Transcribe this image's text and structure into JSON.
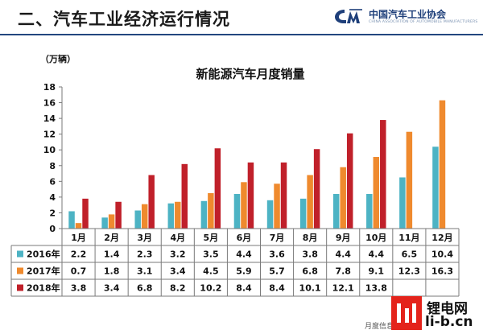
{
  "header": {
    "title": "二、汽车工业经济运行情况",
    "logo_text": "中国汽车工业协会",
    "logo_sub": "CHINA ASSOCIATION OF AUTOMOBILE MANUFACTURERS"
  },
  "footer": {
    "text": "月度信息交流"
  },
  "watermark": {
    "line1": "锂电网",
    "line2": "li-b.cn"
  },
  "colors": {
    "s2016": "#4db3c4",
    "s2017": "#ef8a2e",
    "s2018": "#c0202a",
    "header_rule": "#23467f",
    "grid": "#7a7a7a"
  },
  "chart_data": {
    "type": "bar",
    "title": "新能源汽车月度销量",
    "unit": "（万辆）",
    "categories": [
      "1月",
      "2月",
      "3月",
      "4月",
      "5月",
      "6月",
      "7月",
      "8月",
      "9月",
      "10月",
      "11月",
      "12月"
    ],
    "ylim": [
      0,
      18
    ],
    "yticks": [
      0,
      2,
      4,
      6,
      8,
      10,
      12,
      14,
      16,
      18
    ],
    "grid": false,
    "legend": "table-below",
    "series": [
      {
        "name": "2016年",
        "values": [
          2.2,
          1.4,
          2.3,
          3.2,
          3.5,
          4.4,
          3.6,
          3.8,
          4.4,
          4.4,
          6.5,
          10.4
        ]
      },
      {
        "name": "2017年",
        "values": [
          0.7,
          1.8,
          3.1,
          3.4,
          4.5,
          5.9,
          5.7,
          6.8,
          7.8,
          9.1,
          12.3,
          16.3
        ]
      },
      {
        "name": "2018年",
        "values": [
          3.8,
          3.4,
          6.8,
          8.2,
          10.2,
          8.4,
          8.4,
          10.1,
          12.1,
          13.8,
          null,
          null
        ]
      }
    ],
    "table_rows": [
      {
        "label": "2016年",
        "cells": [
          "2.2",
          "1.4",
          "2.3",
          "3.2",
          "3.5",
          "4.4",
          "3.6",
          "3.8",
          "4.4",
          "4.4",
          "6.5",
          "10.4"
        ]
      },
      {
        "label": "2017年",
        "cells": [
          "0.7",
          "1.8",
          "3.1",
          "3.4",
          "4.5",
          "5.9",
          "5.7",
          "6.8",
          "7.8",
          "9.1",
          "12.3",
          "16.3"
        ]
      },
      {
        "label": "2018年",
        "cells": [
          "3.8",
          "3.4",
          "6.8",
          "8.2",
          "10.2",
          "8.4",
          "8.4",
          "10.1",
          "12.1",
          "13.8",
          "",
          ""
        ]
      }
    ]
  }
}
